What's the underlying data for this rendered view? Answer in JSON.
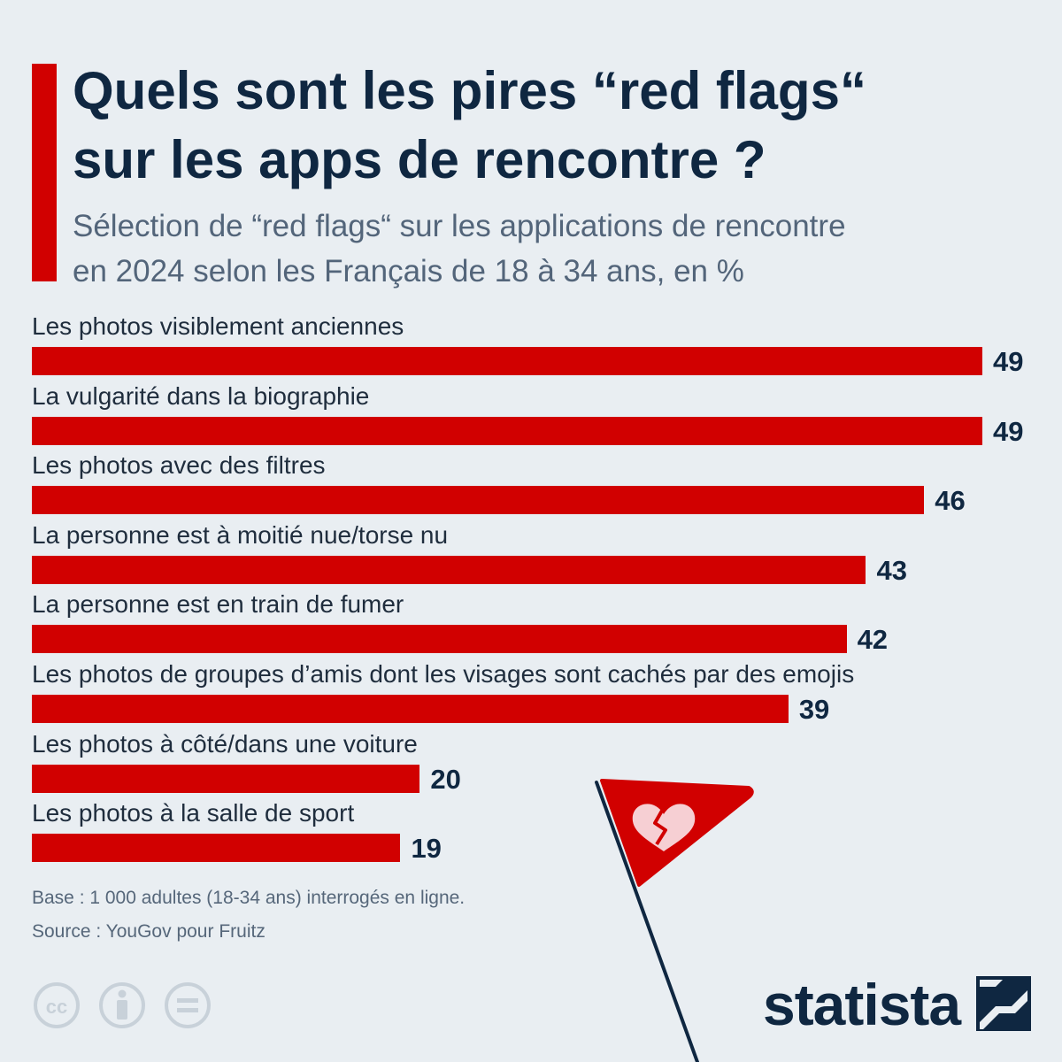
{
  "header": {
    "title_line1": "Quels sont les pires “red flags“",
    "title_line2": "sur les apps de rencontre ?",
    "subtitle_line1": "Sélection de “red flags“ sur les applications de rencontre",
    "subtitle_line2": "en 2024 selon les Français de 18 à 34 ans, en %"
  },
  "chart_data": {
    "type": "bar",
    "orientation": "horizontal",
    "title": "Quels sont les pires “red flags“ sur les apps de rencontre ?",
    "subtitle": "Sélection de “red flags“ sur les applications de rencontre en 2024 selon les Français de 18 à 34 ans, en %",
    "categories": [
      "Les photos visiblement anciennes",
      "La vulgarité dans la biographie",
      "Les photos avec des filtres",
      "La personne est à moitié nue/torse nu",
      "La personne est en train de fumer",
      "Les photos de groupes d’amis dont les visages sont cachés par des emojis",
      "Les photos à côté/dans une voiture",
      "Les photos à la salle de sport"
    ],
    "values": [
      49,
      49,
      46,
      43,
      42,
      39,
      20,
      19
    ],
    "bar_color": "#d10000",
    "xlim": [
      0,
      49
    ],
    "grid": false,
    "legend": "none"
  },
  "footer": {
    "base_note": "Base : 1 000 adultes (18-34 ans) interrogés en ligne.",
    "source_note": "Source : YouGov pour Fruitz",
    "brand": "statista"
  },
  "icons": {
    "license": [
      "cc-icon",
      "attribution-icon",
      "no-derivatives-icon"
    ],
    "decoration": "red-flag-broken-heart-icon",
    "brand_mark": "statista-logo-icon"
  },
  "colors": {
    "background": "#e9eef2",
    "accent": "#d10000",
    "title": "#0f2741",
    "subtitle": "#53657a"
  }
}
